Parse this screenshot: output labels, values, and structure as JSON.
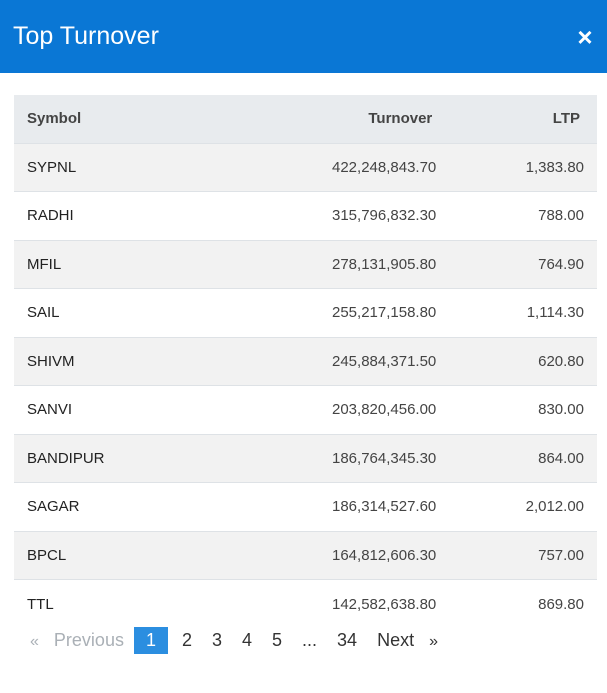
{
  "header": {
    "title": "Top Turnover",
    "close_icon": "×"
  },
  "table": {
    "columns": {
      "symbol": "Symbol",
      "turnover": "Turnover",
      "ltp": "LTP"
    },
    "rows": [
      {
        "symbol": "SYPNL",
        "turnover": "422,248,843.70",
        "ltp": "1,383.80"
      },
      {
        "symbol": "RADHI",
        "turnover": "315,796,832.30",
        "ltp": "788.00"
      },
      {
        "symbol": "MFIL",
        "turnover": "278,131,905.80",
        "ltp": "764.90"
      },
      {
        "symbol": "SAIL",
        "turnover": "255,217,158.80",
        "ltp": "1,114.30"
      },
      {
        "symbol": "SHIVM",
        "turnover": "245,884,371.50",
        "ltp": "620.80"
      },
      {
        "symbol": "SANVI",
        "turnover": "203,820,456.00",
        "ltp": "830.00"
      },
      {
        "symbol": "BANDIPUR",
        "turnover": "186,764,345.30",
        "ltp": "864.00"
      },
      {
        "symbol": "SAGAR",
        "turnover": "186,314,527.60",
        "ltp": "2,012.00"
      },
      {
        "symbol": "BPCL",
        "turnover": "164,812,606.30",
        "ltp": "757.00"
      },
      {
        "symbol": "TTL",
        "turnover": "142,582,638.80",
        "ltp": "869.80"
      }
    ]
  },
  "pagination": {
    "prev_arrow": "«",
    "prev_label": "Previous",
    "pages": [
      "1",
      "2",
      "3",
      "4",
      "5",
      "...",
      "34"
    ],
    "active_page": "1",
    "next_label": "Next",
    "next_arrow": "»"
  }
}
